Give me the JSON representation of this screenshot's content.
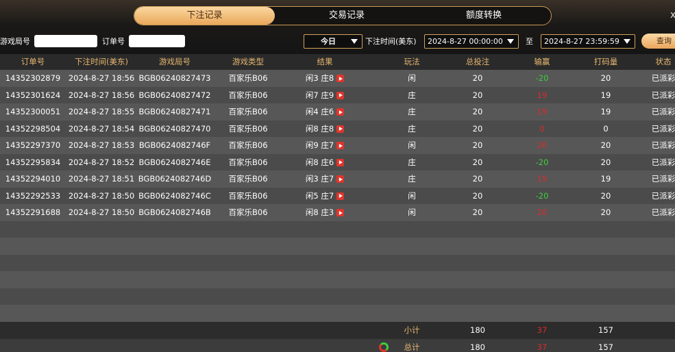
{
  "tabs": [
    "下注记录",
    "交易记录",
    "额度转换"
  ],
  "close": "x",
  "filters": {
    "round_label": "游戏局号",
    "order_label": "订单号",
    "period": "今日",
    "time_label": "下注时间(美东)",
    "start": "2024-8-27 00:00:00",
    "to": "至",
    "end": "2024-8-27 23:59:59",
    "query": "查询"
  },
  "table": {
    "headers": [
      "订单号",
      "下注时间(美东)",
      "游戏局号",
      "游戏类型",
      "结果",
      "玩法",
      "总投注",
      "输赢",
      "打码量",
      "状态"
    ],
    "rows": [
      [
        "14352302879",
        "2024-8-27 18:56",
        "BGB06240827473",
        "百家乐B06",
        "闲3 庄8",
        "闲",
        20,
        -20,
        20,
        "已派彩"
      ],
      [
        "14352301624",
        "2024-8-27 18:56",
        "BGB06240827472",
        "百家乐B06",
        "闲7 庄9",
        "庄",
        20,
        19,
        19,
        "已派彩"
      ],
      [
        "14352300051",
        "2024-8-27 18:55",
        "BGB06240827471",
        "百家乐B06",
        "闲4 庄6",
        "庄",
        20,
        19,
        19,
        "已派彩"
      ],
      [
        "14352298504",
        "2024-8-27 18:54",
        "BGB06240827470",
        "百家乐B06",
        "闲8 庄8",
        "庄",
        20,
        0,
        0,
        "已派彩"
      ],
      [
        "14352297370",
        "2024-8-27 18:53",
        "BGB0624082746F",
        "百家乐B06",
        "闲9 庄7",
        "闲",
        20,
        20,
        20,
        "已派彩"
      ],
      [
        "14352295834",
        "2024-8-27 18:52",
        "BGB0624082746E",
        "百家乐B06",
        "闲8 庄6",
        "庄",
        20,
        -20,
        20,
        "已派彩"
      ],
      [
        "14352294010",
        "2024-8-27 18:51",
        "BGB0624082746D",
        "百家乐B06",
        "闲3 庄7",
        "庄",
        20,
        19,
        19,
        "已派彩"
      ],
      [
        "14352292533",
        "2024-8-27 18:50",
        "BGB0624082746C",
        "百家乐B06",
        "闲5 庄7",
        "闲",
        20,
        -20,
        20,
        "已派彩"
      ],
      [
        "14352291688",
        "2024-8-27 18:50",
        "BGB0624082746B",
        "百家乐B06",
        "闲8 庄3",
        "闲",
        20,
        20,
        20,
        "已派彩"
      ]
    ],
    "subtotal": {
      "label": "小计",
      "bet": 180,
      "winloss": 37,
      "code": 157
    },
    "total": {
      "label": "总计",
      "bet": 180,
      "winloss": 37,
      "code": 157
    }
  }
}
